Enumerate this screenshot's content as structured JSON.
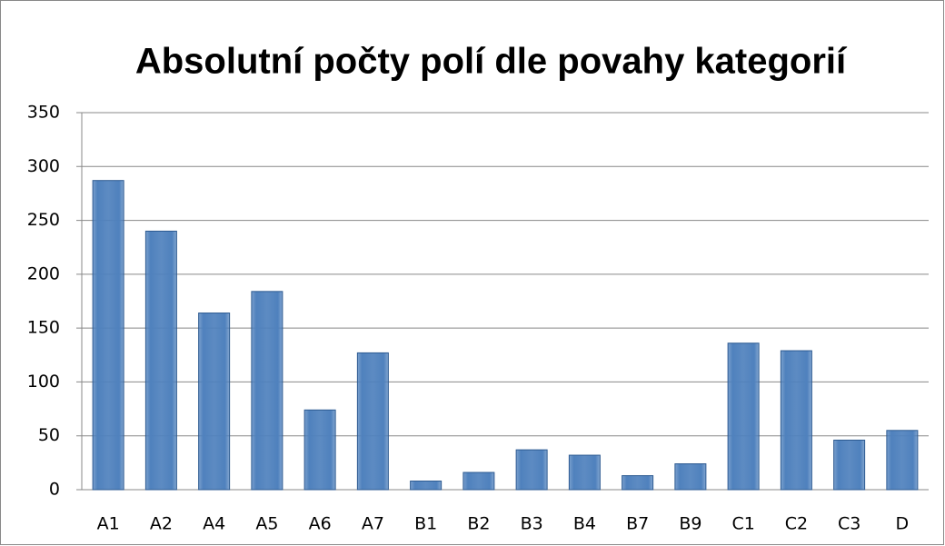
{
  "chart_data": {
    "type": "bar",
    "title": "Absolutní počty polí dle povahy kategorií",
    "categories": [
      "A1",
      "A2",
      "A4",
      "A5",
      "A6",
      "A7",
      "B1",
      "B2",
      "B3",
      "B4",
      "B7",
      "B9",
      "C1",
      "C2",
      "C3",
      "D"
    ],
    "values": [
      287,
      240,
      164,
      184,
      74,
      127,
      8,
      16,
      37,
      32,
      13,
      24,
      136,
      129,
      46,
      55
    ],
    "color": "#4f81bd",
    "ylim": [
      0,
      350
    ],
    "yticks": [
      0,
      50,
      100,
      150,
      200,
      250,
      300,
      350
    ],
    "grid": true
  }
}
